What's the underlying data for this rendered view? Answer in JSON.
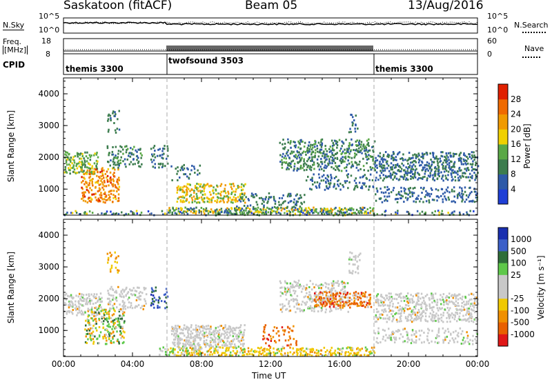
{
  "header": {
    "station": "Saskatoon (fitACF)",
    "beam": "Beam 05",
    "date": "13/Aug/2016"
  },
  "top_panel": {
    "left_label": "N.Sky",
    "right_label": "N.Search",
    "left_ticks": [
      "10^5",
      "10^0"
    ],
    "right_ticks": [
      "10^5",
      "10^0"
    ]
  },
  "freq_panel": {
    "left_label_1": "Freq.",
    "left_label_2": "[MHz]",
    "right_label": "Nave",
    "left_ticks": [
      "18",
      "8"
    ],
    "right_ticks": [
      "60",
      "0"
    ]
  },
  "cpid": {
    "label": "CPID",
    "segments": [
      {
        "name": "themis 3300",
        "start_hour": 0,
        "end_hour": 6
      },
      {
        "name": "twofsound 3503",
        "start_hour": 6,
        "end_hour": 18
      },
      {
        "name": "themis 3300",
        "start_hour": 18,
        "end_hour": 24
      }
    ]
  },
  "colors": {
    "power": [
      "#1f3fd6",
      "#2e5aa8",
      "#3c7c4e",
      "#5aa846",
      "#f0d000",
      "#f09a00",
      "#ef6a00",
      "#e02000"
    ],
    "velocity_pos": [
      "#1a2fb0",
      "#3c5fc8",
      "#2f6e3a",
      "#5ec84a"
    ],
    "velocity_gray": "#c8c8c8",
    "velocity_neg": [
      "#f0c800",
      "#f09000",
      "#e86000",
      "#e01818"
    ]
  },
  "chart_data": [
    {
      "type": "heatmap",
      "name": "power",
      "ylabel": "Slant Range [km]",
      "ylim": [
        180,
        4500
      ],
      "xlim": [
        0,
        24
      ],
      "yticks": [
        "1000",
        "2000",
        "3000",
        "4000"
      ],
      "ytick_values": [
        1000,
        2000,
        3000,
        4000
      ],
      "colorbar_label": "Power [dB]",
      "colorbar_ticks": [
        "4",
        "8",
        "12",
        "16",
        "20",
        "24",
        "28"
      ],
      "colorbar_range": [
        0,
        30
      ],
      "scatter_regions": [
        {
          "t": [
            0.0,
            2.0
          ],
          "r": [
            1500,
            2200
          ],
          "val": 14,
          "spread": 4,
          "density": 0.55
        },
        {
          "t": [
            1.0,
            3.2
          ],
          "r": [
            600,
            1700
          ],
          "val": 24,
          "spread": 5,
          "density": 0.5
        },
        {
          "t": [
            2.5,
            4.5
          ],
          "r": [
            1700,
            2400
          ],
          "val": 10,
          "spread": 3,
          "density": 0.4
        },
        {
          "t": [
            2.5,
            3.2
          ],
          "r": [
            2800,
            3500
          ],
          "val": 9,
          "spread": 3,
          "density": 0.3
        },
        {
          "t": [
            5.0,
            6.0
          ],
          "r": [
            1700,
            2400
          ],
          "val": 8,
          "spread": 3,
          "density": 0.35
        },
        {
          "t": [
            6.5,
            10.5
          ],
          "r": [
            600,
            1200
          ],
          "val": 18,
          "spread": 6,
          "density": 0.55
        },
        {
          "t": [
            6.2,
            8.0
          ],
          "r": [
            1300,
            1800
          ],
          "val": 8,
          "spread": 3,
          "density": 0.2
        },
        {
          "t": [
            6.0,
            18.0
          ],
          "r": [
            250,
            450
          ],
          "val": 14,
          "spread": 8,
          "density": 0.7
        },
        {
          "t": [
            10.0,
            14.0
          ],
          "r": [
            450,
            900
          ],
          "val": 9,
          "spread": 3,
          "density": 0.3
        },
        {
          "t": [
            12.5,
            18.0
          ],
          "r": [
            1600,
            2600
          ],
          "val": 10,
          "spread": 4,
          "density": 0.45
        },
        {
          "t": [
            14.0,
            18.0
          ],
          "r": [
            1000,
            1500
          ],
          "val": 7,
          "spread": 3,
          "density": 0.3
        },
        {
          "t": [
            16.5,
            17.2
          ],
          "r": [
            2800,
            3500
          ],
          "val": 7,
          "spread": 3,
          "density": 0.25
        },
        {
          "t": [
            18.0,
            24.0
          ],
          "r": [
            1300,
            2200
          ],
          "val": 8,
          "spread": 3,
          "density": 0.5
        },
        {
          "t": [
            18.0,
            24.0
          ],
          "r": [
            600,
            1100
          ],
          "val": 7,
          "spread": 3,
          "density": 0.3
        },
        {
          "t": [
            0.0,
            24.0
          ],
          "r": [
            200,
            350
          ],
          "val": 10,
          "spread": 8,
          "density": 0.35
        }
      ]
    },
    {
      "type": "heatmap",
      "name": "velocity",
      "ylabel": "Slant Range [km]",
      "xlabel": "Time UT",
      "ylim": [
        180,
        4500
      ],
      "xlim": [
        0,
        24
      ],
      "yticks": [
        "1000",
        "2000",
        "3000",
        "4000"
      ],
      "ytick_values": [
        1000,
        2000,
        3000,
        4000
      ],
      "xticks": [
        "00:00",
        "04:00",
        "08:00",
        "12:00",
        "16:00",
        "20:00",
        "00:00"
      ],
      "xtick_values": [
        0,
        4,
        8,
        12,
        16,
        20,
        24
      ],
      "colorbar_label": "Velocity [m s⁻¹]",
      "colorbar_ticks": [
        "1000",
        "500",
        "100",
        "25",
        "-25",
        "-100",
        "-500",
        "-1000"
      ],
      "scatter_regions": [
        {
          "t": [
            0.0,
            2.2
          ],
          "r": [
            1500,
            2200
          ],
          "cls": "gray",
          "density": 0.55
        },
        {
          "t": [
            1.2,
            3.5
          ],
          "r": [
            600,
            1700
          ],
          "cls": "mixpos",
          "density": 0.45
        },
        {
          "t": [
            2.5,
            4.8
          ],
          "r": [
            1700,
            2400
          ],
          "cls": "gray",
          "density": 0.4
        },
        {
          "t": [
            2.5,
            3.2
          ],
          "r": [
            2800,
            3500
          ],
          "cls": "neg",
          "density": 0.3
        },
        {
          "t": [
            5.0,
            6.0
          ],
          "r": [
            1700,
            2400
          ],
          "cls": "blue",
          "density": 0.35
        },
        {
          "t": [
            6.2,
            10.5
          ],
          "r": [
            500,
            1200
          ],
          "cls": "gray",
          "density": 0.6
        },
        {
          "t": [
            6.0,
            18.0
          ],
          "r": [
            230,
            500
          ],
          "cls": "yellow",
          "density": 0.6
        },
        {
          "t": [
            5.5,
            8.0
          ],
          "r": [
            250,
            500
          ],
          "cls": "green",
          "density": 0.4
        },
        {
          "t": [
            12.5,
            16.5
          ],
          "r": [
            1600,
            2600
          ],
          "cls": "gray",
          "density": 0.4
        },
        {
          "t": [
            14.5,
            17.8
          ],
          "r": [
            1750,
            2250
          ],
          "cls": "orange",
          "density": 0.6
        },
        {
          "t": [
            11.5,
            13.5
          ],
          "r": [
            500,
            1200
          ],
          "cls": "orange",
          "density": 0.25
        },
        {
          "t": [
            16.5,
            17.2
          ],
          "r": [
            2800,
            3500
          ],
          "cls": "gray",
          "density": 0.3
        },
        {
          "t": [
            18.0,
            24.0
          ],
          "r": [
            1300,
            2200
          ],
          "cls": "gray",
          "density": 0.5
        },
        {
          "t": [
            18.0,
            24.0
          ],
          "r": [
            600,
            1100
          ],
          "cls": "gray",
          "density": 0.3
        }
      ]
    }
  ],
  "axis_labels": {
    "ylabel_top": "Slant Range [km]",
    "ylabel_bottom": "Slant Range [km]",
    "xlabel": "Time UT",
    "power_label": "Power [dB]",
    "velocity_label": "Velocity [m s⁻¹]"
  },
  "xticks": [
    "00:00",
    "04:00",
    "08:00",
    "12:00",
    "16:00",
    "20:00",
    "00:00"
  ],
  "yticks": [
    "1000",
    "2000",
    "3000",
    "4000"
  ],
  "power_ticks": [
    "4",
    "8",
    "12",
    "16",
    "20",
    "24",
    "28"
  ],
  "velocity_ticks": [
    "1000",
    "500",
    "100",
    "25",
    "-25",
    "-100",
    "-500",
    "-1000"
  ]
}
